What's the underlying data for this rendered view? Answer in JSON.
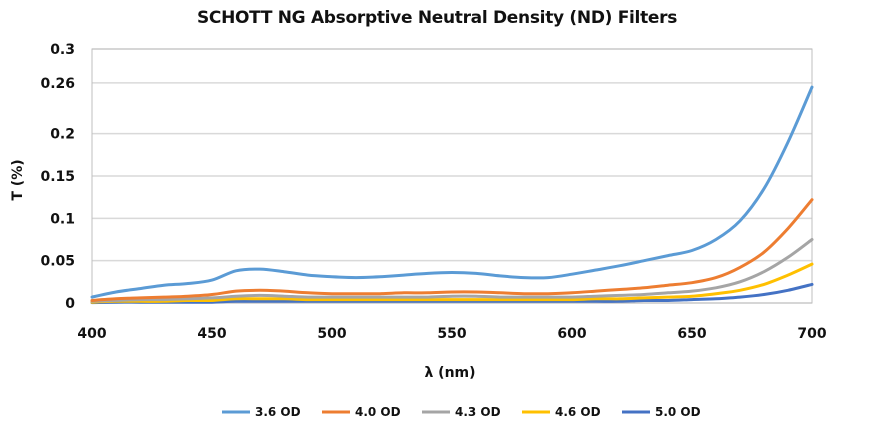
{
  "chart_data": {
    "type": "line",
    "title": "SCHOTT NG Absorptive Neutral Density (ND) Filters",
    "xlabel": "λ (nm)",
    "ylabel": "T (%)",
    "xlim": [
      400,
      700
    ],
    "ylim": [
      0,
      0.3
    ],
    "x_ticks": [
      "400",
      "450",
      "500",
      "550",
      "600",
      "650",
      "700"
    ],
    "y_ticks": [
      "0",
      "0.05",
      "0.1",
      "0.15",
      "0.2",
      "0.26",
      "0.3"
    ],
    "grid": "horizontal",
    "legend_position": "bottom",
    "x": [
      400,
      410,
      420,
      430,
      440,
      450,
      460,
      470,
      480,
      490,
      500,
      510,
      520,
      530,
      540,
      550,
      560,
      570,
      580,
      590,
      600,
      610,
      620,
      630,
      640,
      650,
      660,
      670,
      680,
      690,
      700
    ],
    "series": [
      {
        "name": "3.6 OD",
        "color": "#5b9bd5",
        "values": [
          0.007,
          0.013,
          0.017,
          0.021,
          0.023,
          0.027,
          0.038,
          0.04,
          0.037,
          0.033,
          0.031,
          0.03,
          0.031,
          0.033,
          0.035,
          0.036,
          0.035,
          0.032,
          0.03,
          0.03,
          0.034,
          0.039,
          0.044,
          0.05,
          0.056,
          0.062,
          0.075,
          0.097,
          0.135,
          0.19,
          0.255
        ]
      },
      {
        "name": "4.0 OD",
        "color": "#ed7d31",
        "values": [
          0.003,
          0.005,
          0.006,
          0.007,
          0.008,
          0.01,
          0.014,
          0.015,
          0.014,
          0.012,
          0.011,
          0.011,
          0.011,
          0.012,
          0.012,
          0.013,
          0.013,
          0.012,
          0.011,
          0.011,
          0.012,
          0.014,
          0.016,
          0.018,
          0.021,
          0.024,
          0.03,
          0.042,
          0.06,
          0.088,
          0.122
        ]
      },
      {
        "name": "4.3 OD",
        "color": "#a5a5a5",
        "values": [
          0.002,
          0.003,
          0.004,
          0.004,
          0.005,
          0.006,
          0.008,
          0.009,
          0.008,
          0.007,
          0.007,
          0.007,
          0.007,
          0.007,
          0.007,
          0.008,
          0.008,
          0.007,
          0.007,
          0.007,
          0.007,
          0.008,
          0.009,
          0.01,
          0.012,
          0.014,
          0.018,
          0.025,
          0.037,
          0.054,
          0.075
        ]
      },
      {
        "name": "4.6 OD",
        "color": "#ffc000",
        "values": [
          0.001,
          0.002,
          0.002,
          0.002,
          0.003,
          0.003,
          0.005,
          0.005,
          0.005,
          0.004,
          0.004,
          0.004,
          0.004,
          0.004,
          0.004,
          0.004,
          0.004,
          0.004,
          0.004,
          0.004,
          0.004,
          0.005,
          0.005,
          0.006,
          0.007,
          0.008,
          0.011,
          0.015,
          0.022,
          0.033,
          0.046
        ]
      },
      {
        "name": "5.0 OD",
        "color": "#4472c4",
        "values": [
          0.0005,
          0.001,
          0.001,
          0.001,
          0.001,
          0.001,
          0.002,
          0.002,
          0.002,
          0.002,
          0.002,
          0.002,
          0.002,
          0.002,
          0.002,
          0.002,
          0.002,
          0.002,
          0.002,
          0.002,
          0.002,
          0.002,
          0.002,
          0.003,
          0.003,
          0.004,
          0.005,
          0.007,
          0.01,
          0.015,
          0.022
        ]
      }
    ]
  }
}
